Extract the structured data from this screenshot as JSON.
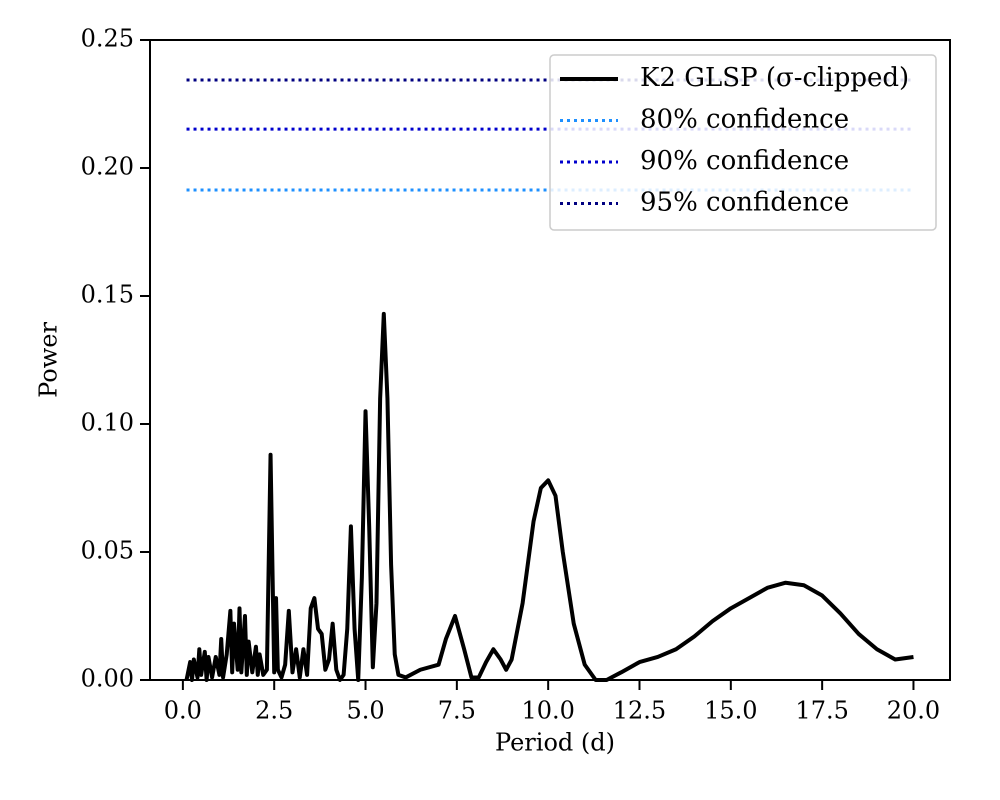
{
  "chart_data": {
    "type": "line",
    "xlabel": "Period (d)",
    "ylabel": "Power",
    "xlim": [
      -0.9,
      21
    ],
    "ylim": [
      0,
      0.25
    ],
    "xticks": [
      {
        "value": 0,
        "label": "0.0"
      },
      2.5,
      {
        "value": 5,
        "label": "5.0"
      },
      7.5,
      {
        "value": 10,
        "label": "10.0"
      },
      12.5,
      {
        "value": 15,
        "label": "15.0"
      },
      17.5,
      {
        "value": 20,
        "label": "20.0"
      }
    ],
    "yticks": [
      {
        "value": 0,
        "label": "0.00"
      },
      {
        "value": 0.05,
        "label": "0.05"
      },
      {
        "value": 0.1,
        "label": "0.10"
      },
      {
        "value": 0.15,
        "label": "0.15"
      },
      {
        "value": 0.2,
        "label": "0.20"
      },
      {
        "value": 0.25,
        "label": "0.25"
      }
    ],
    "legend": "upper right",
    "series": [
      {
        "name": "K2 GLSP (σ-clipped)",
        "color": "#000000",
        "style": "solid",
        "x": [
          0.1,
          0.2,
          0.25,
          0.3,
          0.4,
          0.45,
          0.5,
          0.6,
          0.65,
          0.7,
          0.8,
          0.9,
          1.0,
          1.05,
          1.1,
          1.2,
          1.3,
          1.35,
          1.4,
          1.5,
          1.55,
          1.6,
          1.7,
          1.75,
          1.8,
          1.9,
          2.0,
          2.05,
          2.1,
          2.2,
          2.3,
          2.4,
          2.5,
          2.55,
          2.6,
          2.7,
          2.8,
          2.9,
          3.0,
          3.1,
          3.2,
          3.3,
          3.4,
          3.5,
          3.6,
          3.7,
          3.8,
          3.9,
          4.0,
          4.1,
          4.2,
          4.3,
          4.4,
          4.5,
          4.6,
          4.7,
          4.8,
          4.9,
          5.0,
          5.1,
          5.2,
          5.3,
          5.4,
          5.5,
          5.6,
          5.7,
          5.8,
          5.9,
          6.1,
          6.5,
          7.0,
          7.2,
          7.45,
          7.7,
          7.9,
          8.1,
          8.3,
          8.5,
          8.7,
          8.85,
          9.0,
          9.3,
          9.6,
          9.8,
          10.0,
          10.2,
          10.4,
          10.7,
          11.0,
          11.3,
          11.6,
          12.0,
          12.5,
          13.0,
          13.5,
          14.0,
          14.5,
          15.0,
          15.5,
          16.0,
          16.5,
          17.0,
          17.5,
          18.0,
          18.5,
          19.0,
          19.5,
          20.0
        ],
        "values": [
          0.0,
          0.007,
          0.0,
          0.008,
          0.001,
          0.012,
          0.002,
          0.011,
          0.0,
          0.009,
          0.001,
          0.009,
          0.002,
          0.016,
          0.001,
          0.01,
          0.027,
          0.003,
          0.022,
          0.004,
          0.028,
          0.003,
          0.025,
          0.002,
          0.015,
          0.003,
          0.013,
          0.002,
          0.01,
          0.002,
          0.004,
          0.088,
          0.003,
          0.032,
          0.004,
          0.001,
          0.006,
          0.027,
          0.003,
          0.012,
          0.001,
          0.012,
          0.002,
          0.028,
          0.032,
          0.02,
          0.018,
          0.004,
          0.008,
          0.022,
          0.004,
          0.0,
          0.002,
          0.02,
          0.06,
          0.02,
          0.0,
          0.04,
          0.105,
          0.06,
          0.005,
          0.03,
          0.11,
          0.143,
          0.11,
          0.045,
          0.01,
          0.002,
          0.001,
          0.004,
          0.006,
          0.016,
          0.025,
          0.012,
          0.001,
          0.001,
          0.007,
          0.012,
          0.008,
          0.004,
          0.008,
          0.03,
          0.062,
          0.075,
          0.078,
          0.072,
          0.05,
          0.022,
          0.006,
          0.0,
          0.0,
          0.003,
          0.007,
          0.009,
          0.012,
          0.017,
          0.023,
          0.028,
          0.032,
          0.036,
          0.038,
          0.037,
          0.033,
          0.026,
          0.018,
          0.012,
          0.008,
          0.009
        ]
      },
      {
        "name": "80% confidence",
        "color": "#1e90ff",
        "style": "dotted",
        "x": [
          0.1,
          20.0
        ],
        "values": [
          0.1914,
          0.1914
        ]
      },
      {
        "name": "90% confidence",
        "color": "#0000cd",
        "style": "dotted",
        "x": [
          0.1,
          20.0
        ],
        "values": [
          0.2152,
          0.2152
        ]
      },
      {
        "name": "95% confidence",
        "color": "#000080",
        "style": "dotted",
        "x": [
          0.1,
          20.0
        ],
        "values": [
          0.2344,
          0.2344
        ]
      }
    ]
  }
}
